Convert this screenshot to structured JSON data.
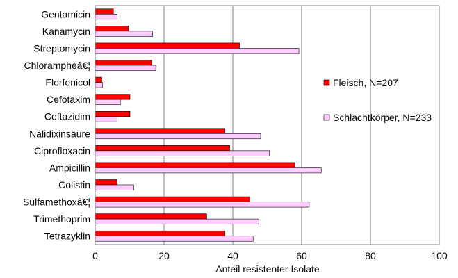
{
  "chart_data": {
    "type": "bar",
    "orientation": "horizontal",
    "categories": [
      "Gentamicin",
      "Kanamycin",
      "Streptomycin",
      "Chlorampheâ€¦",
      "Florfenicol",
      "Cefotaxim",
      "Ceftazidim",
      "Nalidixinsäure",
      "Ciprofloxacin",
      "Ampicillin",
      "Colistin",
      "Sulfamethoxâ€¦",
      "Trimethoprim",
      "Tetrazyklin"
    ],
    "series": [
      {
        "name": "Fleisch, N=207",
        "color": "#ff0000",
        "values": [
          5.3,
          9.7,
          42.0,
          16.4,
          1.9,
          10.1,
          10.1,
          37.7,
          39.1,
          58.0,
          6.3,
          44.9,
          32.4,
          37.7
        ]
      },
      {
        "name": "Schlachtkörper, N=233",
        "color": "#ffccff",
        "values": [
          6.4,
          16.7,
          59.2,
          17.6,
          2.1,
          7.3,
          6.4,
          48.1,
          50.6,
          65.7,
          11.2,
          62.2,
          47.6,
          45.9
        ]
      }
    ],
    "xlabel": "Anteil resistenter Isolate",
    "xlim": [
      0,
      100
    ],
    "xticks": [
      0,
      20,
      40,
      60,
      80,
      100
    ],
    "grid": "vertical",
    "legend_position": "right"
  }
}
